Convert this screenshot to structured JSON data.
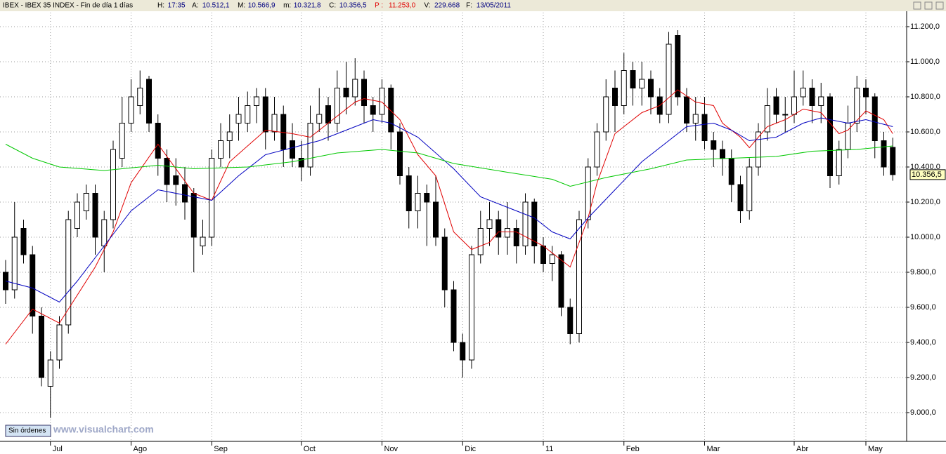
{
  "header": {
    "symbol": "IBEX - IBEX 35 INDEX - Fin de día 1 días",
    "items": [
      {
        "label": "H:",
        "value": "17:35"
      },
      {
        "label": "A:",
        "value": "10.512,1"
      },
      {
        "label": "M:",
        "value": "10.566,9"
      },
      {
        "label": "m:",
        "value": "10.321,8"
      },
      {
        "label": "C:",
        "value": "10.356,5"
      },
      {
        "label": "P :",
        "value": "11.253,0"
      },
      {
        "label": "V:",
        "value": "229.668"
      },
      {
        "label": "F:",
        "value": "13/05/2011"
      }
    ]
  },
  "status": "Sin órdenes",
  "watermark": "www.visualchart.com",
  "chart_data": {
    "type": "candlestick",
    "categories": [
      null,
      null,
      null,
      null,
      null,
      "Jul",
      null,
      null,
      null,
      null,
      null,
      null,
      null,
      null,
      "Ago",
      null,
      null,
      null,
      null,
      null,
      null,
      null,
      null,
      "Sep",
      null,
      null,
      null,
      null,
      null,
      null,
      null,
      null,
      null,
      "Oct",
      null,
      null,
      null,
      null,
      null,
      null,
      null,
      null,
      "Nov",
      null,
      null,
      null,
      null,
      null,
      null,
      null,
      null,
      "Dic",
      null,
      null,
      null,
      null,
      null,
      null,
      null,
      null,
      "11",
      null,
      null,
      null,
      null,
      null,
      null,
      null,
      null,
      "Feb",
      null,
      null,
      null,
      null,
      null,
      null,
      null,
      null,
      "Mar",
      null,
      null,
      null,
      null,
      null,
      null,
      null,
      null,
      null,
      "Abr",
      null,
      null,
      null,
      null,
      null,
      null,
      null,
      "May",
      null,
      null,
      null
    ],
    "open": [
      9800,
      9700,
      10050,
      9900,
      9550,
      9150,
      9300,
      9500,
      10050,
      10150,
      10250,
      9950,
      10100,
      10450,
      10650,
      10750,
      10900,
      10650,
      10450,
      10350,
      10300,
      10250,
      9950,
      10000,
      10450,
      10550,
      10650,
      10650,
      10750,
      10800,
      10600,
      10700,
      10550,
      10450,
      10400,
      10650,
      10750,
      10650,
      10850,
      10800,
      10900,
      10750,
      10700,
      10850,
      10600,
      10350,
      10150,
      10250,
      10200,
      10000,
      9700,
      9400,
      9300,
      9900,
      10050,
      10100,
      10000,
      10050,
      9950,
      10200,
      9950,
      9850,
      9900,
      9600,
      9450,
      10100,
      10400,
      10600,
      10850,
      10750,
      10950,
      10850,
      10900,
      10800,
      10700,
      11150,
      10800,
      10650,
      10700,
      10550,
      10500,
      10450,
      10300,
      10150,
      10400,
      10600,
      10800,
      10700,
      10700,
      10800,
      10850,
      10750,
      10800,
      10350,
      10500,
      10650,
      10850,
      10800,
      10550,
      10512.1
    ],
    "high": [
      9870,
      10200,
      10100,
      9950,
      9600,
      9350,
      9550,
      10150,
      10250,
      10300,
      10300,
      10150,
      10550,
      10800,
      10900,
      10950,
      10920,
      10700,
      10500,
      10450,
      10400,
      10280,
      10100,
      10500,
      10650,
      10700,
      10800,
      10830,
      10850,
      10850,
      10800,
      10750,
      10650,
      10550,
      10750,
      10850,
      10800,
      10950,
      11000,
      11020,
      10950,
      10800,
      10900,
      10870,
      10650,
      10400,
      10350,
      10300,
      10350,
      10050,
      9750,
      9450,
      9950,
      10150,
      10200,
      10150,
      10200,
      10100,
      10250,
      10220,
      10000,
      9950,
      9920,
      9650,
      10150,
      10450,
      10650,
      10900,
      10950,
      11050,
      11000,
      11000,
      10950,
      10850,
      11170,
      11180,
      10850,
      10800,
      10800,
      10600,
      10550,
      10500,
      10350,
      10450,
      10650,
      10850,
      10850,
      10800,
      10950,
      10950,
      10900,
      10880,
      10820,
      10550,
      10750,
      10920,
      10900,
      10820,
      10600,
      10566.9
    ],
    "low": [
      9620,
      9650,
      9850,
      9450,
      9150,
      8970,
      9250,
      9450,
      10000,
      10100,
      9900,
      9800,
      10050,
      10400,
      10600,
      10700,
      10600,
      10350,
      10200,
      10180,
      10100,
      9800,
      9900,
      9950,
      10400,
      10450,
      10550,
      10600,
      10650,
      10500,
      10550,
      10400,
      10400,
      10320,
      10350,
      10600,
      10550,
      10600,
      10700,
      10750,
      10650,
      10600,
      10650,
      10500,
      10300,
      10050,
      10050,
      9950,
      9950,
      9600,
      9350,
      9200,
      9250,
      9850,
      9950,
      9900,
      9900,
      9850,
      9900,
      9850,
      9800,
      9750,
      9550,
      9390,
      9400,
      10050,
      10350,
      10550,
      10600,
      10700,
      10750,
      10750,
      10700,
      10650,
      10650,
      10750,
      10600,
      10550,
      10500,
      10400,
      10350,
      10200,
      10080,
      10100,
      10350,
      10550,
      10650,
      10600,
      10650,
      10750,
      10650,
      10650,
      10280,
      10300,
      10450,
      10600,
      10700,
      10450,
      10350,
      10321.8
    ],
    "close": [
      9700,
      10000,
      9900,
      9550,
      9200,
      9300,
      9500,
      10100,
      10200,
      10250,
      10000,
      10100,
      10500,
      10650,
      10800,
      10850,
      10650,
      10450,
      10300,
      10300,
      10200,
      10000,
      10000,
      10450,
      10550,
      10600,
      10700,
      10750,
      10800,
      10600,
      10700,
      10500,
      10450,
      10400,
      10650,
      10700,
      10650,
      10850,
      10800,
      10900,
      10750,
      10700,
      10850,
      10600,
      10350,
      10150,
      10250,
      10200,
      10000,
      9700,
      9400,
      9300,
      9900,
      10050,
      10100,
      10000,
      10050,
      9950,
      10200,
      9950,
      9850,
      9900,
      9600,
      9450,
      10100,
      10400,
      10600,
      10800,
      10750,
      10950,
      10850,
      10900,
      10800,
      10700,
      11100,
      10800,
      10650,
      10700,
      10550,
      10500,
      10450,
      10300,
      10150,
      10400,
      10600,
      10750,
      10700,
      10700,
      10800,
      10850,
      10750,
      10800,
      10350,
      10500,
      10650,
      10850,
      10800,
      10550,
      10400,
      10356.5
    ],
    "up_color": "#ffffff",
    "down_color": "#000000",
    "lines": [
      {
        "color": "#e00000",
        "x": [
          0,
          3,
          6,
          10,
          12,
          14,
          17,
          19,
          21,
          23,
          25,
          29,
          32,
          34,
          36,
          39,
          40,
          42,
          44,
          46,
          48,
          50,
          52,
          54,
          55,
          57,
          60,
          62,
          63,
          65,
          66,
          68,
          71,
          73,
          75,
          77,
          79,
          80,
          82,
          83,
          85,
          87,
          89,
          91,
          93,
          94,
          96,
          98,
          99
        ],
        "values": [
          9390,
          9590,
          9510,
          9830,
          10030,
          10310,
          10530,
          10390,
          10250,
          10210,
          10430,
          10610,
          10590,
          10570,
          10650,
          10770,
          10790,
          10770,
          10670,
          10470,
          10350,
          10030,
          9930,
          9970,
          10030,
          10030,
          9950,
          9870,
          9830,
          10110,
          10310,
          10590,
          10710,
          10750,
          10840,
          10770,
          10750,
          10650,
          10570,
          10510,
          10630,
          10670,
          10730,
          10710,
          10590,
          10610,
          10720,
          10670,
          10590
        ]
      },
      {
        "color": "#0000c0",
        "x": [
          0,
          3,
          6,
          8,
          11,
          14,
          17,
          21,
          23,
          26,
          29,
          32,
          35,
          39,
          41,
          43,
          46,
          50,
          53,
          56,
          59,
          61,
          63,
          65,
          68,
          71,
          74,
          76,
          79,
          81,
          83,
          86,
          89,
          91,
          94,
          96,
          99
        ],
        "values": [
          9750,
          9710,
          9630,
          9750,
          9950,
          10150,
          10270,
          10230,
          10210,
          10350,
          10470,
          10510,
          10550,
          10630,
          10670,
          10650,
          10570,
          10390,
          10230,
          10170,
          10110,
          10030,
          9990,
          10110,
          10270,
          10430,
          10550,
          10630,
          10650,
          10610,
          10550,
          10570,
          10650,
          10680,
          10650,
          10670,
          10630
        ]
      },
      {
        "color": "#00c800",
        "x": [
          0,
          3,
          6,
          11,
          17,
          21,
          27,
          32,
          37,
          42,
          46,
          50,
          56,
          61,
          63,
          67,
          72,
          76,
          81,
          86,
          90,
          95,
          99
        ],
        "values": [
          10530,
          10450,
          10400,
          10380,
          10410,
          10390,
          10400,
          10430,
          10480,
          10500,
          10480,
          10420,
          10370,
          10330,
          10290,
          10340,
          10390,
          10440,
          10450,
          10460,
          10490,
          10500,
          10520
        ]
      }
    ],
    "ylim": [
      8840,
      11280
    ],
    "yticks": [
      {
        "value": 9000,
        "label": "9.000,0"
      },
      {
        "value": 9200,
        "label": "9.200,0"
      },
      {
        "value": 9400,
        "label": "9.400,0"
      },
      {
        "value": 9600,
        "label": "9.600,0"
      },
      {
        "value": 9800,
        "label": "9.800,0"
      },
      {
        "value": 10000,
        "label": "10.000,0"
      },
      {
        "value": 10200,
        "label": "10.200,0"
      },
      {
        "value": 10400,
        "label": "10.400,0"
      },
      {
        "value": 10600,
        "label": "10.600,0"
      },
      {
        "value": 10800,
        "label": "10.800,0"
      },
      {
        "value": 11000,
        "label": "11.000,0"
      },
      {
        "value": 11200,
        "label": "11.200,0"
      }
    ],
    "last_price": {
      "value": 10356.5,
      "label": "10.356,5"
    },
    "grid": true
  }
}
